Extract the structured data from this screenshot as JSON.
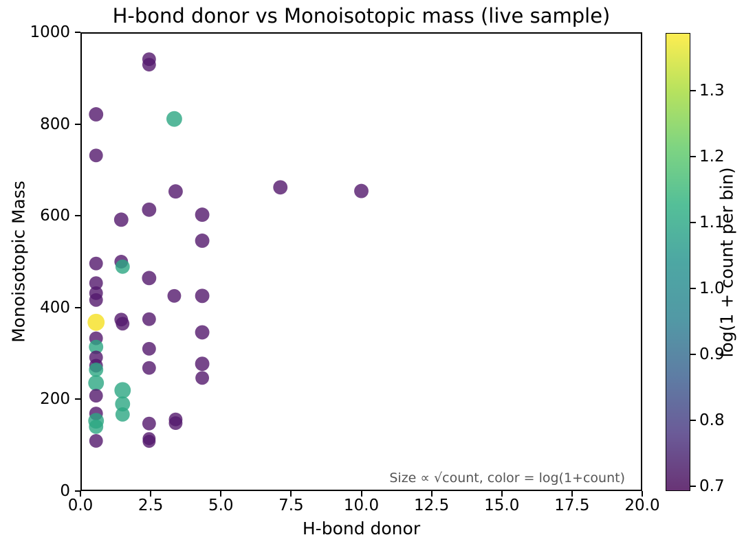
{
  "title": "H-bond donor vs Monoisotopic mass (live sample)",
  "annotation": "Size ∝ √count, color = log(1+count)",
  "chart_data": {
    "type": "scatter",
    "title": "H-bond donor vs Monoisotopic mass (live sample)",
    "xlabel": "H-bond donor",
    "ylabel": "Monoisotopic Mass",
    "xlim": [
      0,
      20
    ],
    "ylim": [
      0,
      1000
    ],
    "grid": false,
    "x_ticks": [
      {
        "v": 0,
        "label": "0.0"
      },
      {
        "v": 2.5,
        "label": "2.5"
      },
      {
        "v": 5,
        "label": "5.0"
      },
      {
        "v": 7.5,
        "label": "7.5"
      },
      {
        "v": 10,
        "label": "10.0"
      },
      {
        "v": 12.5,
        "label": "12.5"
      },
      {
        "v": 15,
        "label": "15.0"
      },
      {
        "v": 17.5,
        "label": "17.5"
      },
      {
        "v": 20,
        "label": "20.0"
      }
    ],
    "y_ticks": [
      {
        "v": 0,
        "label": "0"
      },
      {
        "v": 200,
        "label": "200"
      },
      {
        "v": 400,
        "label": "400"
      },
      {
        "v": 600,
        "label": "600"
      },
      {
        "v": 800,
        "label": "800"
      },
      {
        "v": 1000,
        "label": "1000"
      }
    ],
    "marker_alpha": 0.8,
    "palette": {
      "purple": "#54196d",
      "teal": "#2ca682",
      "yellow": "#f5e022"
    },
    "points": [
      {
        "x": 0.5,
        "y": 823,
        "r": 10.5,
        "c": "purple"
      },
      {
        "x": 0.5,
        "y": 733,
        "r": 10,
        "c": "purple"
      },
      {
        "x": 0.5,
        "y": 496,
        "r": 10,
        "c": "purple"
      },
      {
        "x": 0.5,
        "y": 453,
        "r": 10,
        "c": "purple"
      },
      {
        "x": 0.5,
        "y": 431,
        "r": 10,
        "c": "purple"
      },
      {
        "x": 0.5,
        "y": 416,
        "r": 10,
        "c": "purple"
      },
      {
        "x": 0.5,
        "y": 367,
        "r": 12.5,
        "c": "yellow"
      },
      {
        "x": 0.5,
        "y": 332,
        "r": 10,
        "c": "purple"
      },
      {
        "x": 0.5,
        "y": 313,
        "r": 10.5,
        "c": "teal"
      },
      {
        "x": 0.5,
        "y": 290,
        "r": 10,
        "c": "purple"
      },
      {
        "x": 0.5,
        "y": 272,
        "r": 10,
        "c": "purple"
      },
      {
        "x": 0.5,
        "y": 263,
        "r": 10.5,
        "c": "teal"
      },
      {
        "x": 0.5,
        "y": 234,
        "r": 11.5,
        "c": "teal"
      },
      {
        "x": 0.5,
        "y": 206,
        "r": 10,
        "c": "purple"
      },
      {
        "x": 0.5,
        "y": 167,
        "r": 10,
        "c": "purple"
      },
      {
        "x": 0.5,
        "y": 151,
        "r": 11.5,
        "c": "teal"
      },
      {
        "x": 0.5,
        "y": 138,
        "r": 10.5,
        "c": "teal"
      },
      {
        "x": 0.5,
        "y": 107,
        "r": 10,
        "c": "purple"
      },
      {
        "x": 1.4,
        "y": 592,
        "r": 10.5,
        "c": "purple"
      },
      {
        "x": 1.4,
        "y": 500,
        "r": 10,
        "c": "purple"
      },
      {
        "x": 1.45,
        "y": 489,
        "r": 10.5,
        "c": "teal"
      },
      {
        "x": 1.4,
        "y": 373,
        "r": 10,
        "c": "purple"
      },
      {
        "x": 1.45,
        "y": 364,
        "r": 10,
        "c": "purple"
      },
      {
        "x": 1.45,
        "y": 218,
        "r": 12,
        "c": "teal"
      },
      {
        "x": 1.45,
        "y": 188,
        "r": 11,
        "c": "teal"
      },
      {
        "x": 1.45,
        "y": 165,
        "r": 10.5,
        "c": "teal"
      },
      {
        "x": 2.4,
        "y": 944,
        "r": 10,
        "c": "purple"
      },
      {
        "x": 2.4,
        "y": 932,
        "r": 10,
        "c": "purple"
      },
      {
        "x": 2.4,
        "y": 614,
        "r": 10.5,
        "c": "purple"
      },
      {
        "x": 2.4,
        "y": 464,
        "r": 10.5,
        "c": "purple"
      },
      {
        "x": 2.4,
        "y": 374,
        "r": 10,
        "c": "purple"
      },
      {
        "x": 2.4,
        "y": 309,
        "r": 10,
        "c": "purple"
      },
      {
        "x": 2.4,
        "y": 267,
        "r": 10,
        "c": "purple"
      },
      {
        "x": 2.4,
        "y": 145,
        "r": 10,
        "c": "purple"
      },
      {
        "x": 2.4,
        "y": 112,
        "r": 9.5,
        "c": "purple"
      },
      {
        "x": 2.4,
        "y": 106,
        "r": 9.5,
        "c": "purple"
      },
      {
        "x": 3.3,
        "y": 813,
        "r": 11.5,
        "c": "teal"
      },
      {
        "x": 3.35,
        "y": 654,
        "r": 10.5,
        "c": "purple"
      },
      {
        "x": 3.3,
        "y": 425,
        "r": 10,
        "c": "purple"
      },
      {
        "x": 3.35,
        "y": 154,
        "r": 10,
        "c": "purple"
      },
      {
        "x": 3.35,
        "y": 146,
        "r": 10,
        "c": "purple"
      },
      {
        "x": 4.3,
        "y": 603,
        "r": 10.5,
        "c": "purple"
      },
      {
        "x": 4.3,
        "y": 546,
        "r": 10.5,
        "c": "purple"
      },
      {
        "x": 4.3,
        "y": 425,
        "r": 10.5,
        "c": "purple"
      },
      {
        "x": 4.3,
        "y": 345,
        "r": 10.5,
        "c": "purple"
      },
      {
        "x": 4.3,
        "y": 276,
        "r": 10.5,
        "c": "purple"
      },
      {
        "x": 4.3,
        "y": 245,
        "r": 10,
        "c": "purple"
      },
      {
        "x": 7.1,
        "y": 663,
        "r": 10.5,
        "c": "purple"
      },
      {
        "x": 10.0,
        "y": 655,
        "r": 10.5,
        "c": "purple"
      }
    ],
    "colorbar": {
      "label": "log(1 + count per bin)",
      "vmin": 0.693,
      "vmax": 1.387,
      "ticks": [
        {
          "v": 0.7,
          "label": "0.7"
        },
        {
          "v": 0.8,
          "label": "0.8"
        },
        {
          "v": 0.9,
          "label": "0.9"
        },
        {
          "v": 1.0,
          "label": "1.0"
        },
        {
          "v": 1.1,
          "label": "1.1"
        },
        {
          "v": 1.2,
          "label": "1.2"
        },
        {
          "v": 1.3,
          "label": "1.3"
        }
      ],
      "gradient_top_to_bottom": [
        "#fded51",
        "#b7e25e",
        "#7ed482",
        "#54bf98",
        "#4da7a3",
        "#5299a5",
        "#5e7da4",
        "#6b5b98",
        "#693476"
      ]
    }
  }
}
